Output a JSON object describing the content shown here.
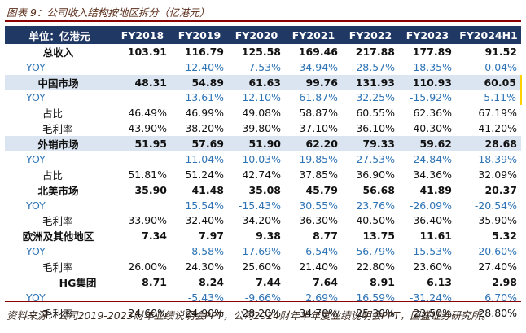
{
  "title": "图表 9：公司收入结构按地区拆分（亿港元）",
  "columns": [
    "单位：亿港元",
    "FY2018",
    "FY2019",
    "FY2020",
    "FY2021",
    "FY2022",
    "FY2023",
    "FY2024H1"
  ],
  "rows": [
    {
      "label": "总收入",
      "values": [
        "103.91",
        "116.79",
        "125.58",
        "169.46",
        "217.88",
        "177.89",
        "91.52"
      ]
    },
    {
      "label": "YOY",
      "values": [
        "",
        "12.40%",
        "7.53%",
        "34.94%",
        "28.57%",
        "-18.35%",
        "-0.04%"
      ]
    },
    {
      "label": "中国市场",
      "values": [
        "48.31",
        "54.89",
        "61.63",
        "99.76",
        "131.93",
        "110.93",
        "60.05"
      ]
    },
    {
      "label": "YOY",
      "values": [
        "",
        "13.61%",
        "12.10%",
        "61.87%",
        "32.25%",
        "-15.92%",
        "5.11%"
      ]
    },
    {
      "label": "占比",
      "values": [
        "46.49%",
        "46.99%",
        "49.08%",
        "58.87%",
        "60.55%",
        "62.36%",
        "67.19%"
      ]
    },
    {
      "label": "毛利率",
      "values": [
        "43.90%",
        "38.20%",
        "39.80%",
        "37.10%",
        "36.10%",
        "40.30%",
        "41.20%"
      ]
    },
    {
      "label": "外销市场",
      "values": [
        "51.95",
        "57.69",
        "51.90",
        "62.20",
        "79.33",
        "59.62",
        "28.68"
      ]
    },
    {
      "label": "YOY",
      "values": [
        "",
        "11.04%",
        "-10.03%",
        "19.85%",
        "27.53%",
        "-24.84%",
        "-18.39%"
      ]
    },
    {
      "label": "占比",
      "values": [
        "51.81%",
        "51.24%",
        "42.74%",
        "37.85%",
        "36.90%",
        "34.36%",
        "32.09%"
      ]
    },
    {
      "label": "北美市场",
      "values": [
        "35.90",
        "41.48",
        "35.08",
        "45.79",
        "56.68",
        "41.89",
        "20.37"
      ]
    },
    {
      "label": "YOY",
      "values": [
        "",
        "15.54%",
        "-15.43%",
        "30.55%",
        "23.76%",
        "-26.09%",
        "-20.54%"
      ]
    },
    {
      "label": "毛利率",
      "values": [
        "33.90%",
        "32.40%",
        "34.20%",
        "36.30%",
        "40.50%",
        "36.40%",
        "35.90%"
      ]
    },
    {
      "label": "欧洲及其他地区",
      "values": [
        "7.34",
        "7.97",
        "9.38",
        "8.77",
        "13.75",
        "11.61",
        "5.32"
      ]
    },
    {
      "label": "YOY",
      "values": [
        "",
        "8.58%",
        "17.69%",
        "-6.54%",
        "56.79%",
        "-15.53%",
        "-20.60%"
      ]
    },
    {
      "label": "毛利率",
      "values": [
        "26.00%",
        "24.30%",
        "25.60%",
        "21.40%",
        "22.80%",
        "23.60%",
        "27.40%"
      ]
    },
    {
      "label": "HG集团",
      "values": [
        "8.71",
        "8.24",
        "7.44",
        "7.64",
        "8.91",
        "6.13",
        "2.98"
      ]
    },
    {
      "label": "YOY",
      "values": [
        "",
        "-5.43%",
        "-9.66%",
        "2.69%",
        "16.59%",
        "-31.24%",
        "6.70%"
      ]
    },
    {
      "label": "毛利率",
      "values": [
        "24.60%",
        "24.90%",
        "28.20%",
        "34.70%",
        "25.30%",
        "23.50%",
        "28.80%"
      ]
    }
  ],
  "source": "资料来源：公司2019-2023财年业绩说明会PPT，公司2024财年半年度业绩说明会PPT，国盛证券研究所。"
}
